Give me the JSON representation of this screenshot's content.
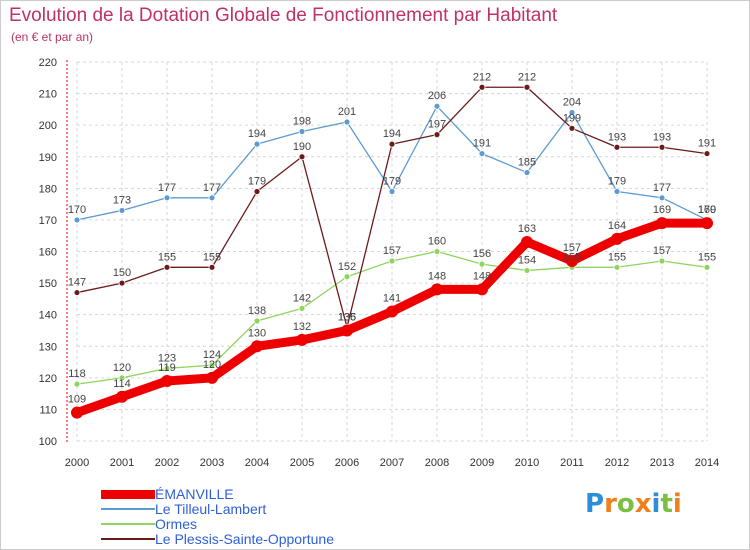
{
  "title": "Evolution de la Dotation Globale de Fonctionnement par Habitant",
  "subtitle": "(en € et par an)",
  "logo": {
    "letters": [
      "P",
      "r",
      "o",
      "x",
      "i",
      "t",
      "i"
    ],
    "colors": [
      "#2e8fd6",
      "#f07f1d",
      "#7cc043",
      "#f07f1d",
      "#2e8fd6",
      "#7cc043",
      "#f07f1d"
    ]
  },
  "chart_data": {
    "type": "line",
    "title": "Evolution de la Dotation Globale de Fonctionnement par Habitant",
    "subtitle": "(en € et par an)",
    "xlabel": "",
    "ylabel": "",
    "x": [
      "2000",
      "2001",
      "2002",
      "2003",
      "2004",
      "2005",
      "2006",
      "2007",
      "2008",
      "2009",
      "2010",
      "2011",
      "2012",
      "2013",
      "2014"
    ],
    "ylim": [
      100,
      220
    ],
    "yticks": [
      "100",
      "110",
      "120",
      "130",
      "140",
      "150",
      "160",
      "170",
      "180",
      "190",
      "200",
      "210",
      "220"
    ],
    "grid": true,
    "legend_position": "bottom-left",
    "series": [
      {
        "name": "Le Tilleul-Lambert",
        "color": "#5b9bd1",
        "values": [
          170,
          173,
          177,
          177,
          194,
          198,
          201,
          179,
          206,
          191,
          185,
          204,
          179,
          177,
          170
        ]
      },
      {
        "name": "Ormes",
        "color": "#8fd45c",
        "values": [
          118,
          120,
          123,
          124,
          138,
          142,
          152,
          157,
          160,
          156,
          154,
          155,
          155,
          157,
          155
        ]
      },
      {
        "name": "Le Plessis-Sainte-Opportune",
        "color": "#6b1a1a",
        "values": [
          147,
          150,
          155,
          155,
          179,
          190,
          136,
          194,
          197,
          212,
          212,
          199,
          193,
          193,
          191
        ]
      },
      {
        "name": "ÉMANVILLE",
        "color": "#ee0000",
        "values": [
          109,
          114,
          119,
          120,
          130,
          132,
          135,
          141,
          148,
          148,
          163,
          157,
          164,
          169,
          169
        ]
      }
    ]
  }
}
